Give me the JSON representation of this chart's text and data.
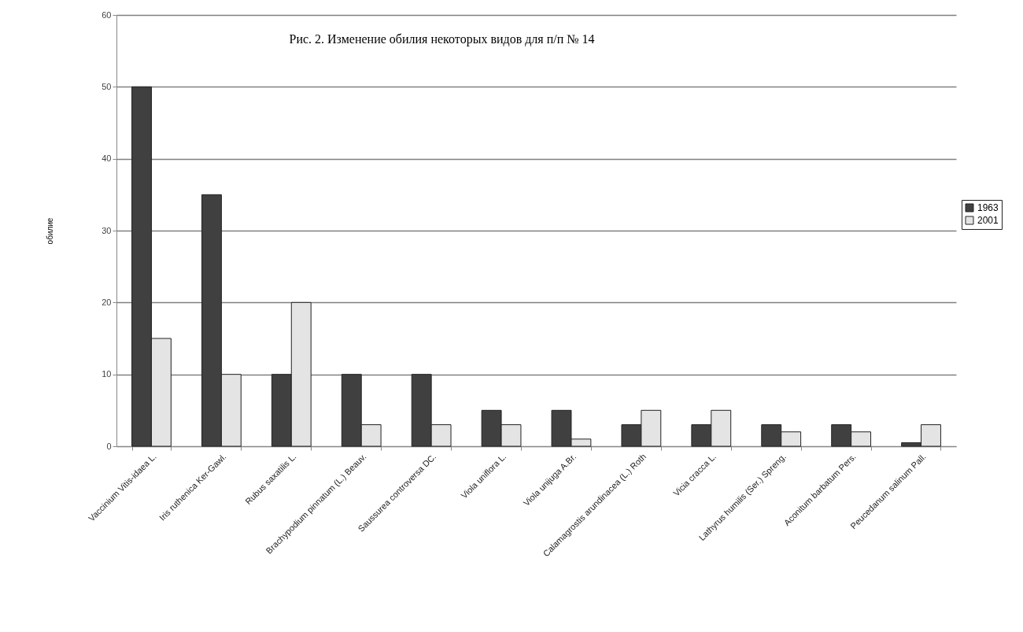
{
  "chart_data": {
    "type": "bar",
    "title": "Рис. 2.  Изменение обилия некоторых видов для п/п № 14",
    "ylabel": "обилие",
    "categories": [
      "Vaccinium Vitis-idaea L.",
      "Iris ruthenica Ker-Gawl.",
      "Rubus saxatilis L.",
      "Brachypodium pinnatum (L.) Beauv.",
      "Saussurea controversa DC.",
      "Viola uniflora L.",
      "Viola unijuga A.Br.",
      "Calamagrostis arundinacea (L.) Roth",
      "Vicia cracca L.",
      "Lathyrus humilis (Ser.) Spreng.",
      "Aconitum barbatum Pers.",
      "Peucedanum salinum Pall."
    ],
    "series": [
      {
        "name": "1963",
        "color": "#404040",
        "values": [
          50,
          35,
          10,
          10,
          10,
          5,
          5,
          3,
          3,
          3,
          3,
          0.5
        ]
      },
      {
        "name": "2001",
        "color": "#e4e4e4",
        "values": [
          15,
          10,
          20,
          3,
          3,
          3,
          1,
          5,
          5,
          2,
          2,
          3
        ]
      }
    ],
    "ylim": [
      0,
      60
    ],
    "yticks": [
      0,
      10,
      20,
      30,
      40,
      50,
      60
    ],
    "grid": "y",
    "legend": "right"
  }
}
